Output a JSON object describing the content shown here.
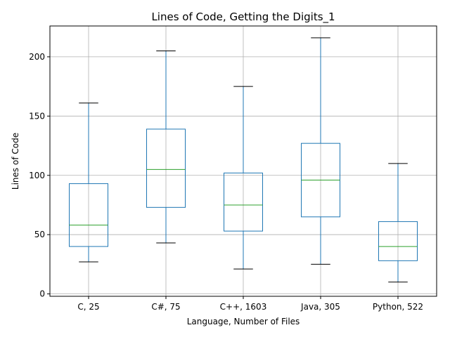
{
  "chart_data": {
    "type": "box",
    "title": "Lines of Code, Getting the Digits_1",
    "xlabel": "Language, Number of Files",
    "ylabel": "Lines of Code",
    "categories": [
      "C, 25",
      "C#, 75",
      "C++, 1603",
      "Java, 305",
      "Python, 522"
    ],
    "boxes": [
      {
        "whisker_low": 27,
        "q1": 40,
        "median": 58,
        "q3": 93,
        "whisker_high": 161
      },
      {
        "whisker_low": 43,
        "q1": 73,
        "median": 105,
        "q3": 139,
        "whisker_high": 205
      },
      {
        "whisker_low": 21,
        "q1": 53,
        "median": 75,
        "q3": 102,
        "whisker_high": 175
      },
      {
        "whisker_low": 25,
        "q1": 65,
        "median": 96,
        "q3": 127,
        "whisker_high": 216
      },
      {
        "whisker_low": 10,
        "q1": 28,
        "median": 40,
        "q3": 61,
        "whisker_high": 110
      }
    ],
    "yticks": [
      0,
      50,
      100,
      150,
      200
    ],
    "ylim": [
      -2,
      226
    ],
    "grid": true,
    "colors": {
      "box": "#1f77b4",
      "median": "#2ca02c",
      "cap": "#000000",
      "grid": "#b0b0b0"
    }
  }
}
